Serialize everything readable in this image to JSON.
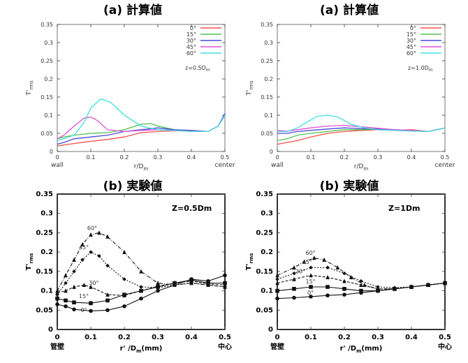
{
  "chart_data": [
    {
      "id": "a1",
      "type": "line",
      "title": "(a) 計算値",
      "xlabel": "r/D",
      "xlabel_sub": "m",
      "ylabel": "T'",
      "ylabel_sub": "rms",
      "xlim": [
        0,
        0.5
      ],
      "ylim": [
        0,
        0.35
      ],
      "xticks": [
        "0",
        "0.1",
        "0.2",
        "0.3",
        "0.4",
        "0.5"
      ],
      "yticks": [
        "0",
        "0.05",
        "0.1",
        "0.15",
        "0.2",
        "0.25",
        "0.3",
        "0.35"
      ],
      "x_end_labels": [
        "wall",
        "center"
      ],
      "annotation": "z=0.5D",
      "annotation_sub": "m",
      "legend_position": "top-right",
      "series": [
        {
          "name": "0°",
          "color": "#f0504a",
          "x": [
            0,
            0.02,
            0.05,
            0.1,
            0.15,
            0.2,
            0.25,
            0.3,
            0.35,
            0.4,
            0.45,
            0.48,
            0.5
          ],
          "y": [
            0.015,
            0.018,
            0.022,
            0.028,
            0.033,
            0.04,
            0.052,
            0.055,
            0.057,
            0.056,
            0.055,
            0.07,
            0.1
          ]
        },
        {
          "name": "15°",
          "color": "#4fc24f",
          "x": [
            0,
            0.02,
            0.05,
            0.1,
            0.15,
            0.2,
            0.25,
            0.28,
            0.3,
            0.35,
            0.4,
            0.45,
            0.48,
            0.5
          ],
          "y": [
            0.035,
            0.04,
            0.045,
            0.05,
            0.052,
            0.06,
            0.075,
            0.077,
            0.07,
            0.06,
            0.058,
            0.055,
            0.07,
            0.1
          ]
        },
        {
          "name": "30°",
          "color": "#4a4ad6",
          "x": [
            0,
            0.02,
            0.05,
            0.1,
            0.15,
            0.2,
            0.25,
            0.3,
            0.35,
            0.4,
            0.45,
            0.48,
            0.5
          ],
          "y": [
            0.02,
            0.025,
            0.035,
            0.04,
            0.045,
            0.055,
            0.06,
            0.065,
            0.06,
            0.058,
            0.055,
            0.07,
            0.105
          ]
        },
        {
          "name": "45°",
          "color": "#e050d8",
          "x": [
            0,
            0.02,
            0.05,
            0.08,
            0.1,
            0.12,
            0.15,
            0.2,
            0.25,
            0.3,
            0.35,
            0.4,
            0.45,
            0.48,
            0.5
          ],
          "y": [
            0.035,
            0.045,
            0.07,
            0.092,
            0.095,
            0.085,
            0.06,
            0.055,
            0.058,
            0.06,
            0.058,
            0.056,
            0.055,
            0.07,
            0.1
          ]
        },
        {
          "name": "60°",
          "color": "#3fe0e0",
          "x": [
            0,
            0.02,
            0.05,
            0.08,
            0.1,
            0.13,
            0.16,
            0.2,
            0.25,
            0.3,
            0.35,
            0.4,
            0.45,
            0.48,
            0.5
          ],
          "y": [
            0.03,
            0.035,
            0.045,
            0.08,
            0.12,
            0.145,
            0.135,
            0.1,
            0.07,
            0.06,
            0.058,
            0.055,
            0.055,
            0.07,
            0.1
          ]
        }
      ]
    },
    {
      "id": "a2",
      "type": "line",
      "title": "(a) 計算値",
      "xlabel": "r/D",
      "xlabel_sub": "m",
      "ylabel": "T'",
      "ylabel_sub": "rms",
      "xlim": [
        0,
        0.5
      ],
      "ylim": [
        0,
        0.35
      ],
      "xticks": [
        "0",
        "0.1",
        "0.2",
        "0.3",
        "0.4",
        "0.5"
      ],
      "yticks": [
        "0",
        "0.05",
        "0.1",
        "0.15",
        "0.2",
        "0.25",
        "0.3",
        "0.35"
      ],
      "x_end_labels": [
        "wall",
        "center"
      ],
      "annotation": "z=1.0D",
      "annotation_sub": "m",
      "legend_position": "top-right",
      "series": [
        {
          "name": "0°",
          "color": "#f0504a",
          "x": [
            0,
            0.03,
            0.06,
            0.1,
            0.15,
            0.2,
            0.25,
            0.3,
            0.35,
            0.4,
            0.45,
            0.5
          ],
          "y": [
            0.02,
            0.025,
            0.03,
            0.04,
            0.05,
            0.055,
            0.058,
            0.06,
            0.058,
            0.06,
            0.055,
            0.065
          ]
        },
        {
          "name": "15°",
          "color": "#4fc24f",
          "x": [
            0,
            0.03,
            0.06,
            0.1,
            0.15,
            0.2,
            0.25,
            0.3,
            0.35,
            0.4,
            0.45,
            0.5
          ],
          "y": [
            0.03,
            0.035,
            0.045,
            0.05,
            0.055,
            0.06,
            0.06,
            0.062,
            0.058,
            0.057,
            0.055,
            0.065
          ]
        },
        {
          "name": "30°",
          "color": "#4a4ad6",
          "x": [
            0,
            0.03,
            0.06,
            0.1,
            0.15,
            0.2,
            0.25,
            0.3,
            0.35,
            0.4,
            0.45,
            0.5
          ],
          "y": [
            0.05,
            0.05,
            0.055,
            0.058,
            0.062,
            0.065,
            0.063,
            0.062,
            0.06,
            0.058,
            0.055,
            0.065
          ]
        },
        {
          "name": "45°",
          "color": "#e050d8",
          "x": [
            0,
            0.03,
            0.06,
            0.1,
            0.15,
            0.2,
            0.25,
            0.3,
            0.35,
            0.4,
            0.45,
            0.5
          ],
          "y": [
            0.058,
            0.056,
            0.06,
            0.065,
            0.07,
            0.072,
            0.068,
            0.064,
            0.06,
            0.058,
            0.055,
            0.065
          ]
        },
        {
          "name": "60°",
          "color": "#3fe0e0",
          "x": [
            0,
            0.03,
            0.06,
            0.09,
            0.12,
            0.15,
            0.18,
            0.22,
            0.26,
            0.3,
            0.35,
            0.4,
            0.45,
            0.5
          ],
          "y": [
            0.055,
            0.055,
            0.065,
            0.082,
            0.097,
            0.1,
            0.095,
            0.075,
            0.065,
            0.06,
            0.058,
            0.056,
            0.055,
            0.065
          ]
        }
      ]
    },
    {
      "id": "b1",
      "type": "line",
      "title": "(b) 実験値",
      "xlabel": "r' /D",
      "xlabel_sub": "m",
      "xlabel_suffix": "(mm)",
      "ylabel": "T'",
      "ylabel_sub": "rms",
      "xlim": [
        0,
        0.5
      ],
      "ylim": [
        0,
        0.35
      ],
      "xticks": [
        "0",
        "0.1",
        "0.2",
        "0.3",
        "0.4",
        "0.5"
      ],
      "yticks": [
        "0",
        "0.05",
        "0.1",
        "0.15",
        "0.2",
        "0.25",
        "0.3",
        "0.35"
      ],
      "x_end_labels": [
        "管壁",
        "中心"
      ],
      "annotation": "Z=0.5Dm",
      "series": [
        {
          "name": "0°",
          "color": "#111111",
          "x": [
            0,
            0.025,
            0.05,
            0.1,
            0.15,
            0.2,
            0.25,
            0.3,
            0.35,
            0.4,
            0.45,
            0.5
          ],
          "y": [
            0.065,
            0.06,
            0.052,
            0.048,
            0.05,
            0.06,
            0.08,
            0.1,
            0.115,
            0.13,
            0.125,
            0.14
          ]
        },
        {
          "name": "15°",
          "color": "#111111",
          "x": [
            0,
            0.025,
            0.05,
            0.1,
            0.15,
            0.2,
            0.25,
            0.3,
            0.35,
            0.4,
            0.45,
            0.5
          ],
          "y": [
            0.08,
            0.075,
            0.07,
            0.068,
            0.075,
            0.09,
            0.1,
            0.11,
            0.12,
            0.128,
            0.12,
            0.12
          ]
        },
        {
          "name": "30°",
          "color": "#111111",
          "x": [
            0,
            0.025,
            0.05,
            0.08,
            0.1,
            0.15,
            0.2,
            0.25,
            0.3,
            0.35,
            0.4,
            0.45,
            0.5
          ],
          "y": [
            0.095,
            0.1,
            0.11,
            0.115,
            0.11,
            0.09,
            0.088,
            0.1,
            0.112,
            0.12,
            0.125,
            0.118,
            0.115
          ]
        },
        {
          "name": "45°",
          "color": "#111111",
          "x": [
            0,
            0.025,
            0.05,
            0.075,
            0.1,
            0.125,
            0.15,
            0.2,
            0.25,
            0.3,
            0.35,
            0.4,
            0.45,
            0.5
          ],
          "y": [
            0.09,
            0.12,
            0.15,
            0.18,
            0.2,
            0.19,
            0.165,
            0.13,
            0.11,
            0.108,
            0.115,
            0.12,
            0.115,
            0.11
          ]
        },
        {
          "name": "60°",
          "color": "#111111",
          "x": [
            0,
            0.025,
            0.05,
            0.075,
            0.1,
            0.125,
            0.15,
            0.2,
            0.25,
            0.3,
            0.35,
            0.4,
            0.45,
            0.5
          ],
          "y": [
            0.1,
            0.14,
            0.18,
            0.22,
            0.245,
            0.25,
            0.24,
            0.2,
            0.15,
            0.12,
            0.115,
            0.12,
            0.115,
            0.11
          ]
        }
      ]
    },
    {
      "id": "b2",
      "type": "line",
      "title": "(b) 実験値",
      "xlabel": "r' /D",
      "xlabel_sub": "m",
      "xlabel_suffix": "(mm)",
      "ylabel": "T'",
      "ylabel_sub": "rms",
      "xlim": [
        0,
        0.5
      ],
      "ylim": [
        0,
        0.35
      ],
      "xticks": [
        "0",
        "0.1",
        "0.2",
        "0.3",
        "0.4",
        "0.5"
      ],
      "yticks": [
        "0",
        "0.05",
        "0.1",
        "0.15",
        "0.2",
        "0.25",
        "0.3",
        "0.35"
      ],
      "x_end_labels": [
        "管壁",
        "中心"
      ],
      "annotation": "Z=1Dm",
      "series": [
        {
          "name": "0°",
          "color": "#111111",
          "x": [
            0,
            0.05,
            0.1,
            0.15,
            0.2,
            0.25,
            0.3,
            0.35,
            0.4,
            0.45,
            0.5
          ],
          "y": [
            0.08,
            0.082,
            0.085,
            0.088,
            0.09,
            0.095,
            0.1,
            0.105,
            0.11,
            0.115,
            0.12
          ]
        },
        {
          "name": "15°",
          "color": "#111111",
          "x": [
            0,
            0.05,
            0.1,
            0.15,
            0.2,
            0.25,
            0.3,
            0.35,
            0.4,
            0.45,
            0.5
          ],
          "y": [
            0.1,
            0.105,
            0.11,
            0.11,
            0.105,
            0.1,
            0.1,
            0.105,
            0.11,
            0.115,
            0.12
          ]
        },
        {
          "name": "30°",
          "color": "#111111",
          "x": [
            0,
            0.05,
            0.1,
            0.15,
            0.2,
            0.25,
            0.3,
            0.35,
            0.4,
            0.45,
            0.5
          ],
          "y": [
            0.12,
            0.13,
            0.14,
            0.135,
            0.125,
            0.115,
            0.105,
            0.105,
            0.11,
            0.115,
            0.12
          ]
        },
        {
          "name": "45°",
          "color": "#111111",
          "x": [
            0,
            0.05,
            0.1,
            0.15,
            0.2,
            0.25,
            0.3,
            0.35,
            0.4,
            0.45,
            0.5
          ],
          "y": [
            0.13,
            0.145,
            0.16,
            0.16,
            0.145,
            0.125,
            0.11,
            0.108,
            0.11,
            0.115,
            0.12
          ]
        },
        {
          "name": "60°",
          "color": "#111111",
          "x": [
            0,
            0.05,
            0.08,
            0.11,
            0.14,
            0.18,
            0.22,
            0.26,
            0.3,
            0.35,
            0.4,
            0.45,
            0.5
          ],
          "y": [
            0.14,
            0.16,
            0.175,
            0.185,
            0.18,
            0.16,
            0.135,
            0.115,
            0.105,
            0.105,
            0.11,
            0.115,
            0.12
          ]
        }
      ]
    }
  ]
}
